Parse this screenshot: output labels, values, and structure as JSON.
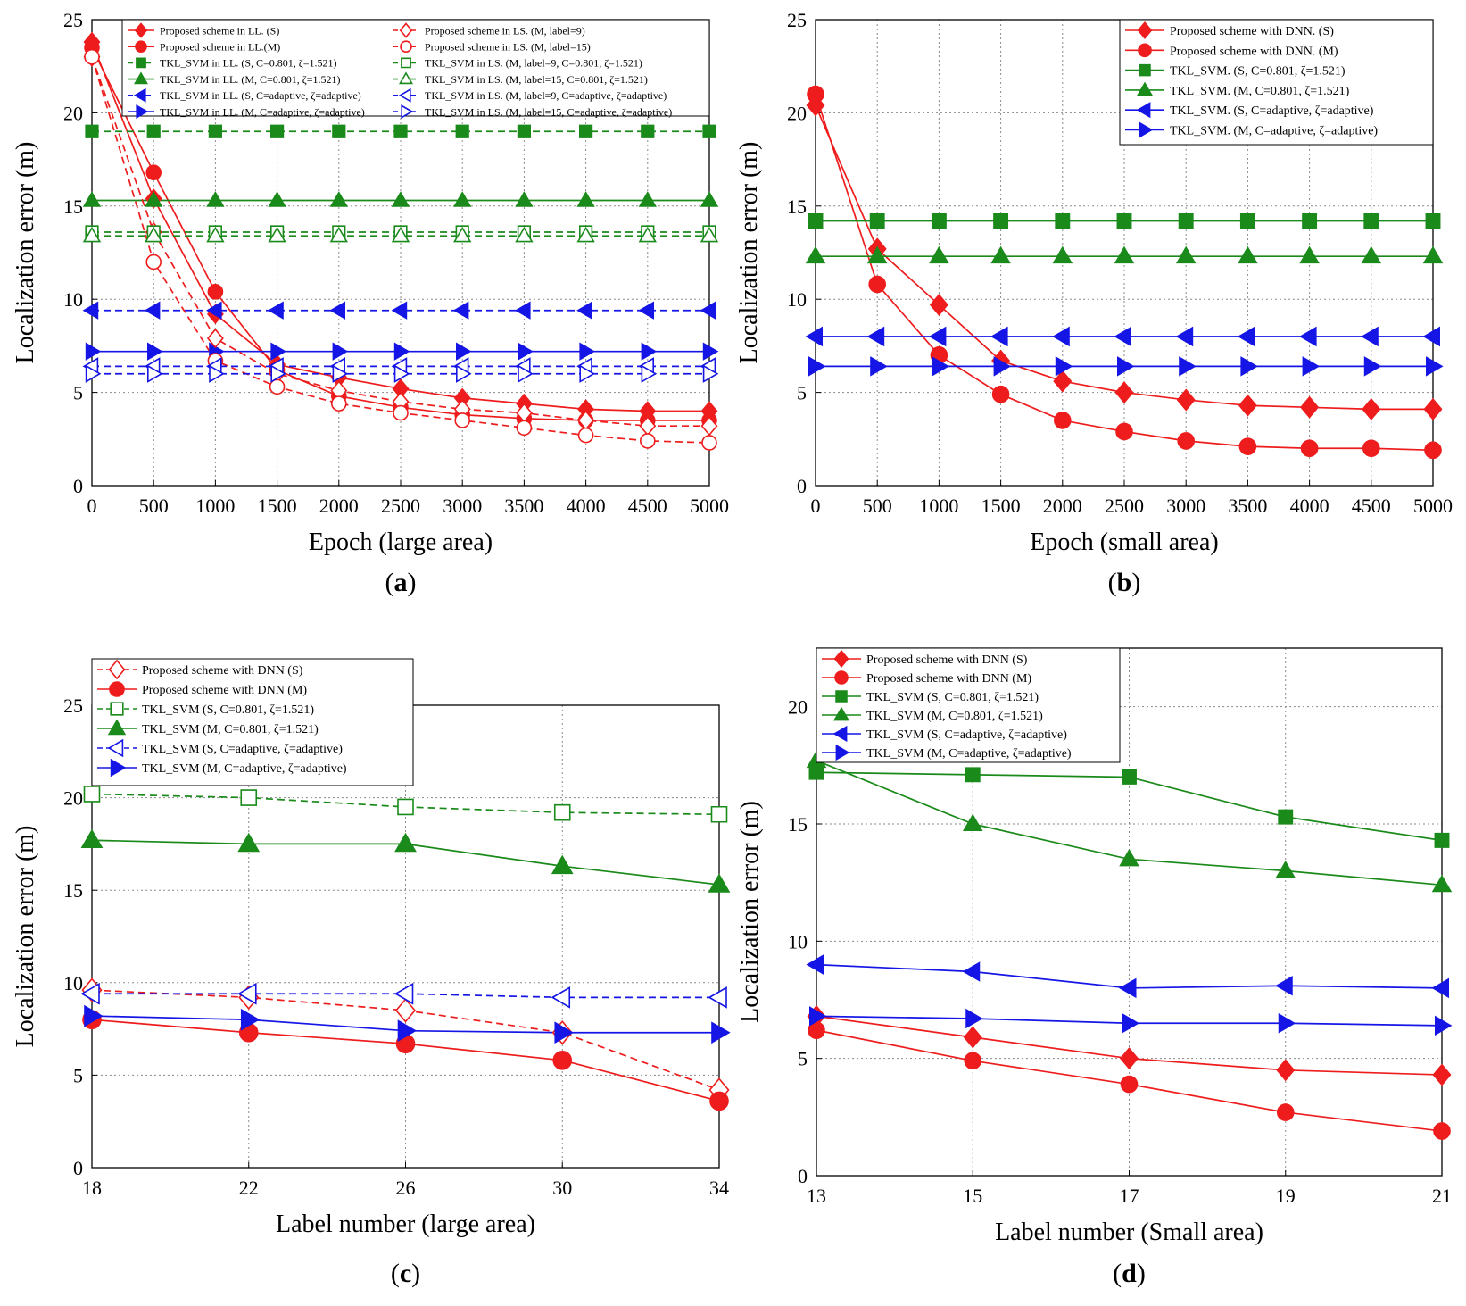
{
  "colors": {
    "red": "#ee1c1c",
    "green": "#1a8a1a",
    "blue": "#1515e6",
    "grid": "#8a8a8a"
  },
  "chart_data": [
    {
      "type": "line",
      "panel_label": "a",
      "xlabel": "Epoch (large area)",
      "ylabel": "Localization error (m)",
      "xlim": [
        0,
        5000
      ],
      "ylim": [
        0,
        25
      ],
      "xticks": [
        0,
        500,
        1000,
        1500,
        2000,
        2500,
        3000,
        3500,
        4000,
        4500,
        5000
      ],
      "yticks": [
        0,
        5,
        10,
        15,
        20,
        25
      ],
      "grid": true,
      "legend_placement": "top",
      "legend_columns": 2,
      "x": [
        0,
        500,
        1000,
        1500,
        2000,
        2500,
        3000,
        3500,
        4000,
        4500,
        5000
      ],
      "series": [
        {
          "name": "Proposed scheme in LL. (S)",
          "color": "red",
          "dash": false,
          "marker": "diamond",
          "filled": true,
          "values": [
            23.8,
            15.4,
            9.2,
            6.5,
            5.8,
            5.2,
            4.7,
            4.4,
            4.1,
            4.0,
            4.0
          ]
        },
        {
          "name": "Proposed scheme in LL.(M)",
          "color": "red",
          "dash": false,
          "marker": "circle",
          "filled": true,
          "values": [
            23.5,
            16.8,
            10.4,
            6.2,
            4.8,
            4.2,
            3.8,
            3.6,
            3.5,
            3.5,
            3.5
          ]
        },
        {
          "name": "TKL_SVM in LL. (S, C=0.801, ζ=1.521)",
          "color": "green",
          "dash": true,
          "marker": "square",
          "filled": true,
          "values": [
            19.0,
            19.0,
            19.0,
            19.0,
            19.0,
            19.0,
            19.0,
            19.0,
            19.0,
            19.0,
            19.0
          ]
        },
        {
          "name": "TKL_SVM in LL. (M, C=0.801, ζ=1.521)",
          "color": "green",
          "dash": false,
          "marker": "triangle-up",
          "filled": true,
          "values": [
            15.3,
            15.3,
            15.3,
            15.3,
            15.3,
            15.3,
            15.3,
            15.3,
            15.3,
            15.3,
            15.3
          ]
        },
        {
          "name": "TKL_SVM in LL. (S, C=adaptive, ζ=adaptive)",
          "color": "blue",
          "dash": true,
          "marker": "triangle-left",
          "filled": true,
          "values": [
            9.4,
            9.4,
            9.4,
            9.4,
            9.4,
            9.4,
            9.4,
            9.4,
            9.4,
            9.4,
            9.4
          ]
        },
        {
          "name": "TKL_SVM in LL. (M, C=adaptive, ζ=adaptive)",
          "color": "blue",
          "dash": false,
          "marker": "triangle-right",
          "filled": true,
          "values": [
            7.2,
            7.2,
            7.2,
            7.2,
            7.2,
            7.2,
            7.2,
            7.2,
            7.2,
            7.2,
            7.2
          ]
        },
        {
          "name": "Proposed scheme  in LS. (M, label=9)",
          "color": "red",
          "dash": true,
          "marker": "diamond",
          "filled": false,
          "values": [
            23.0,
            13.6,
            7.9,
            6.0,
            5.1,
            4.5,
            4.1,
            3.9,
            3.5,
            3.2,
            3.2
          ]
        },
        {
          "name": " Proposed scheme in LS. (M, label=15)",
          "color": "red",
          "dash": true,
          "marker": "circle",
          "filled": false,
          "values": [
            23.0,
            12.0,
            6.7,
            5.3,
            4.4,
            3.9,
            3.5,
            3.1,
            2.7,
            2.4,
            2.3
          ]
        },
        {
          "name": "TKL_SVM in LS. (M, label=9, C=0.801, ζ=1.521)",
          "color": "green",
          "dash": true,
          "marker": "square",
          "filled": false,
          "values": [
            13.6,
            13.6,
            13.6,
            13.6,
            13.6,
            13.6,
            13.6,
            13.6,
            13.6,
            13.6,
            13.6
          ]
        },
        {
          "name": "TKL_SVM in LS. (M, label=15, C=0.801, ζ=1.521)",
          "color": "green",
          "dash": true,
          "marker": "triangle-up",
          "filled": false,
          "values": [
            13.4,
            13.4,
            13.4,
            13.4,
            13.4,
            13.4,
            13.4,
            13.4,
            13.4,
            13.4,
            13.4
          ]
        },
        {
          "name": "TKL_SVM in LS. (M, label=9, C=adaptive, ζ=adaptive)",
          "color": "blue",
          "dash": true,
          "marker": "triangle-left",
          "filled": false,
          "values": [
            6.4,
            6.4,
            6.4,
            6.4,
            6.4,
            6.4,
            6.4,
            6.4,
            6.4,
            6.4,
            6.4
          ]
        },
        {
          "name": "TKL_SVM in LS. (M, label=15, C=adaptive, ζ=adaptive)",
          "color": "blue",
          "dash": true,
          "marker": "triangle-right",
          "filled": false,
          "values": [
            6.0,
            6.0,
            6.0,
            6.0,
            6.0,
            6.0,
            6.0,
            6.0,
            6.0,
            6.0,
            6.0
          ]
        }
      ]
    },
    {
      "type": "line",
      "panel_label": "b",
      "xlabel": "Epoch (small area)",
      "ylabel": "Localization error (m)",
      "xlim": [
        0,
        5000
      ],
      "ylim": [
        0,
        25
      ],
      "xticks": [
        0,
        500,
        1000,
        1500,
        2000,
        2500,
        3000,
        3500,
        4000,
        4500,
        5000
      ],
      "yticks": [
        0,
        5,
        10,
        15,
        20,
        25
      ],
      "grid": true,
      "legend_placement": "top-right",
      "legend_columns": 1,
      "x": [
        0,
        500,
        1000,
        1500,
        2000,
        2500,
        3000,
        3500,
        4000,
        4500,
        5000
      ],
      "series": [
        {
          "name": "Proposed scheme with DNN. (S)",
          "color": "red",
          "dash": false,
          "marker": "diamond",
          "filled": true,
          "values": [
            20.4,
            12.7,
            9.7,
            6.7,
            5.6,
            5.0,
            4.6,
            4.3,
            4.2,
            4.1,
            4.1
          ]
        },
        {
          "name": "Proposed scheme with DNN. (M)",
          "color": "red",
          "dash": false,
          "marker": "circle",
          "filled": true,
          "values": [
            21.0,
            10.8,
            7.0,
            4.9,
            3.5,
            2.9,
            2.4,
            2.1,
            2.0,
            2.0,
            1.9
          ]
        },
        {
          "name": "TKL_SVM. (S, C=0.801, ζ=1.521)",
          "color": "green",
          "dash": false,
          "marker": "square",
          "filled": true,
          "values": [
            14.2,
            14.2,
            14.2,
            14.2,
            14.2,
            14.2,
            14.2,
            14.2,
            14.2,
            14.2,
            14.2
          ]
        },
        {
          "name": "TKL_SVM. (M, C=0.801, ζ=1.521)",
          "color": "green",
          "dash": false,
          "marker": "triangle-up",
          "filled": true,
          "values": [
            12.3,
            12.3,
            12.3,
            12.3,
            12.3,
            12.3,
            12.3,
            12.3,
            12.3,
            12.3,
            12.3
          ]
        },
        {
          "name": "TKL_SVM. (S, C=adaptive, ζ=adaptive)",
          "color": "blue",
          "dash": false,
          "marker": "triangle-left",
          "filled": true,
          "values": [
            8.0,
            8.0,
            8.0,
            8.0,
            8.0,
            8.0,
            8.0,
            8.0,
            8.0,
            8.0,
            8.0
          ]
        },
        {
          "name": "TKL_SVM. (M, C=adaptive, ζ=adaptive)",
          "color": "blue",
          "dash": false,
          "marker": "triangle-right",
          "filled": true,
          "values": [
            6.4,
            6.4,
            6.4,
            6.4,
            6.4,
            6.4,
            6.4,
            6.4,
            6.4,
            6.4,
            6.4
          ]
        }
      ]
    },
    {
      "type": "line",
      "panel_label": "c",
      "xlabel": "Label number (large area)",
      "ylabel": "Localization error (m)",
      "xlim": [
        18,
        34
      ],
      "ylim": [
        0,
        25
      ],
      "xticks": [
        18,
        22,
        26,
        30,
        34
      ],
      "yticks": [
        0,
        5,
        10,
        15,
        20,
        25
      ],
      "grid": true,
      "legend_placement": "top-left",
      "legend_columns": 1,
      "x": [
        18,
        22,
        26,
        30,
        34
      ],
      "series": [
        {
          "name": "Proposed scheme with DNN (S)",
          "color": "red",
          "dash": true,
          "marker": "diamond",
          "filled": false,
          "values": [
            9.6,
            9.2,
            8.5,
            7.3,
            4.2
          ]
        },
        {
          "name": "Proposed scheme with DNN (M)",
          "color": "red",
          "dash": false,
          "marker": "circle",
          "filled": true,
          "values": [
            8.0,
            7.3,
            6.7,
            5.8,
            3.6
          ]
        },
        {
          "name": "TKL_SVM (S, C=0.801, ζ=1.521)",
          "color": "green",
          "dash": true,
          "marker": "square",
          "filled": false,
          "values": [
            20.2,
            20.0,
            19.5,
            19.2,
            19.1
          ]
        },
        {
          "name": "TKL_SVM (M, C=0.801, ζ=1.521)",
          "color": "green",
          "dash": false,
          "marker": "triangle-up",
          "filled": true,
          "values": [
            17.7,
            17.5,
            17.5,
            16.3,
            15.3
          ]
        },
        {
          "name": "TKL_SVM (S, C=adaptive, ζ=adaptive)",
          "color": "blue",
          "dash": true,
          "marker": "triangle-left",
          "filled": false,
          "values": [
            9.4,
            9.4,
            9.4,
            9.2,
            9.2
          ]
        },
        {
          "name": "TKL_SVM (M, C=adaptive, ζ=adaptive)",
          "color": "blue",
          "dash": false,
          "marker": "triangle-right",
          "filled": true,
          "values": [
            8.2,
            8.0,
            7.4,
            7.3,
            7.3
          ]
        }
      ]
    },
    {
      "type": "line",
      "panel_label": "d",
      "xlabel": "Label number (Small area)",
      "ylabel": "Localization error (m)",
      "xlim": [
        13,
        21
      ],
      "ylim": [
        0,
        22.5
      ],
      "xticks": [
        13,
        15,
        17,
        19,
        21
      ],
      "yticks": [
        0,
        5,
        10,
        15,
        20
      ],
      "grid": true,
      "legend_placement": "top-left",
      "legend_columns": 1,
      "x": [
        13,
        15,
        17,
        19,
        21
      ],
      "series": [
        {
          "name": "Proposed scheme with DNN (S)",
          "color": "red",
          "dash": false,
          "marker": "diamond",
          "filled": true,
          "values": [
            6.8,
            5.9,
            5.0,
            4.5,
            4.3
          ]
        },
        {
          "name": "Proposed scheme with DNN (M)",
          "color": "red",
          "dash": false,
          "marker": "circle",
          "filled": true,
          "values": [
            6.2,
            4.9,
            3.9,
            2.7,
            1.9
          ]
        },
        {
          "name": "TKL_SVM (S, C=0.801, ζ=1.521)",
          "color": "green",
          "dash": false,
          "marker": "square",
          "filled": true,
          "values": [
            17.2,
            17.1,
            17.0,
            15.3,
            14.3
          ]
        },
        {
          "name": "TKL_SVM (M, C=0.801, ζ=1.521)",
          "color": "green",
          "dash": false,
          "marker": "triangle-up",
          "filled": true,
          "values": [
            17.7,
            15.0,
            13.5,
            13.0,
            12.4
          ]
        },
        {
          "name": "TKL_SVM (S, C=adaptive, ζ=adaptive)",
          "color": "blue",
          "dash": false,
          "marker": "triangle-left",
          "filled": true,
          "values": [
            9.0,
            8.7,
            8.0,
            8.1,
            8.0
          ]
        },
        {
          "name": "TKL_SVM (M, C=adaptive, ζ=adaptive)",
          "color": "blue",
          "dash": false,
          "marker": "triangle-right",
          "filled": true,
          "values": [
            6.8,
            6.7,
            6.5,
            6.5,
            6.4
          ]
        }
      ]
    }
  ]
}
